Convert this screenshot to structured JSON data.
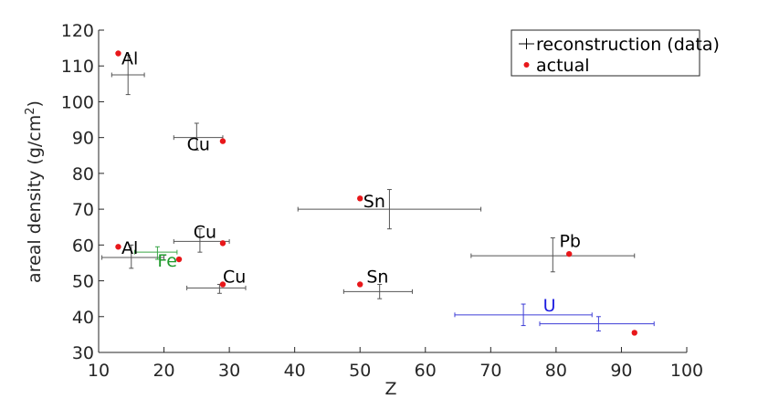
{
  "chart_data": {
    "type": "scatter",
    "xlabel": "Z",
    "ylabel_main": "areal density (g/cm",
    "ylabel_sup": "2",
    "ylabel_tail": ")",
    "xlim": [
      10,
      100
    ],
    "ylim": [
      30,
      120
    ],
    "xticks": [
      10,
      20,
      30,
      40,
      50,
      60,
      70,
      80,
      90,
      100
    ],
    "yticks": [
      30,
      40,
      50,
      60,
      70,
      80,
      90,
      100,
      110,
      120
    ],
    "legend": {
      "placement": "top-right",
      "entries": [
        {
          "label": "reconstruction (data)",
          "marker": "errorbar",
          "color": "#000000"
        },
        {
          "label": "actual",
          "marker": "dot",
          "color": "#e8171a"
        }
      ]
    },
    "series": [
      {
        "name": "reconstruction (data)",
        "points": [
          {
            "x": 14.5,
            "y": 107.5,
            "xerr": [
              12.0,
              17.0
            ],
            "yerr": [
              102.0,
              113.0
            ],
            "color": "#555555"
          },
          {
            "x": 25.0,
            "y": 90.0,
            "xerr": [
              21.5,
              29.0
            ],
            "yerr": [
              86.5,
              94.0
            ],
            "color": "#555555"
          },
          {
            "x": 54.5,
            "y": 70.0,
            "xerr": [
              40.5,
              68.5
            ],
            "yerr": [
              64.5,
              75.5
            ],
            "color": "#555555"
          },
          {
            "x": 15.0,
            "y": 56.5,
            "xerr": [
              10.5,
              20.0
            ],
            "yerr": [
              53.5,
              60.0
            ],
            "color": "#555555"
          },
          {
            "x": 19.0,
            "y": 58.0,
            "xerr": [
              15.5,
              22.0
            ],
            "yerr": [
              56.0,
              59.5
            ],
            "color": "#3aa648"
          },
          {
            "x": 25.5,
            "y": 61.0,
            "xerr": [
              21.5,
              30.0
            ],
            "yerr": [
              58.0,
              64.5
            ],
            "color": "#555555"
          },
          {
            "x": 28.5,
            "y": 48.0,
            "xerr": [
              23.5,
              32.5
            ],
            "yerr": [
              46.5,
              49.0
            ],
            "color": "#555555"
          },
          {
            "x": 53.0,
            "y": 47.0,
            "xerr": [
              47.5,
              58.0
            ],
            "yerr": [
              45.0,
              49.0
            ],
            "color": "#555555"
          },
          {
            "x": 79.5,
            "y": 57.0,
            "xerr": [
              67.0,
              92.0
            ],
            "yerr": [
              52.5,
              62.0
            ],
            "color": "#555555"
          },
          {
            "x": 75.0,
            "y": 40.5,
            "xerr": [
              64.5,
              85.5
            ],
            "yerr": [
              37.5,
              43.5
            ],
            "color": "#3d3dd6"
          },
          {
            "x": 86.5,
            "y": 38.0,
            "xerr": [
              77.5,
              95.0
            ],
            "yerr": [
              36.0,
              40.0
            ],
            "color": "#3d3dd6"
          }
        ]
      },
      {
        "name": "actual",
        "points": [
          {
            "x": 13.0,
            "y": 113.5
          },
          {
            "x": 29.0,
            "y": 89.0
          },
          {
            "x": 50.0,
            "y": 73.0
          },
          {
            "x": 13.0,
            "y": 59.5
          },
          {
            "x": 22.3,
            "y": 56.0
          },
          {
            "x": 29.0,
            "y": 60.5
          },
          {
            "x": 29.0,
            "y": 49.0
          },
          {
            "x": 50.0,
            "y": 49.0
          },
          {
            "x": 82.0,
            "y": 57.5
          },
          {
            "x": 92.0,
            "y": 35.5
          }
        ]
      }
    ],
    "annotations": [
      {
        "text": "Al",
        "x": 13.5,
        "y": 110.5,
        "color": "#000000"
      },
      {
        "text": "Cu",
        "x": 23.5,
        "y": 86.5,
        "color": "#000000"
      },
      {
        "text": "Sn",
        "x": 50.5,
        "y": 70.5,
        "color": "#000000"
      },
      {
        "text": "Al",
        "x": 13.5,
        "y": 57.5,
        "color": "#000000"
      },
      {
        "text": "Cu",
        "x": 24.5,
        "y": 62.0,
        "color": "#000000"
      },
      {
        "text": "Fe",
        "x": 19.0,
        "y": 54.0,
        "color": "#1f9a2c"
      },
      {
        "text": "Cu",
        "x": 29.0,
        "y": 49.5,
        "color": "#000000"
      },
      {
        "text": "Sn",
        "x": 51.0,
        "y": 49.5,
        "color": "#000000"
      },
      {
        "text": "Pb",
        "x": 80.5,
        "y": 59.5,
        "color": "#000000"
      },
      {
        "text": "U",
        "x": 78.0,
        "y": 41.5,
        "color": "#1c1ce0"
      }
    ]
  }
}
